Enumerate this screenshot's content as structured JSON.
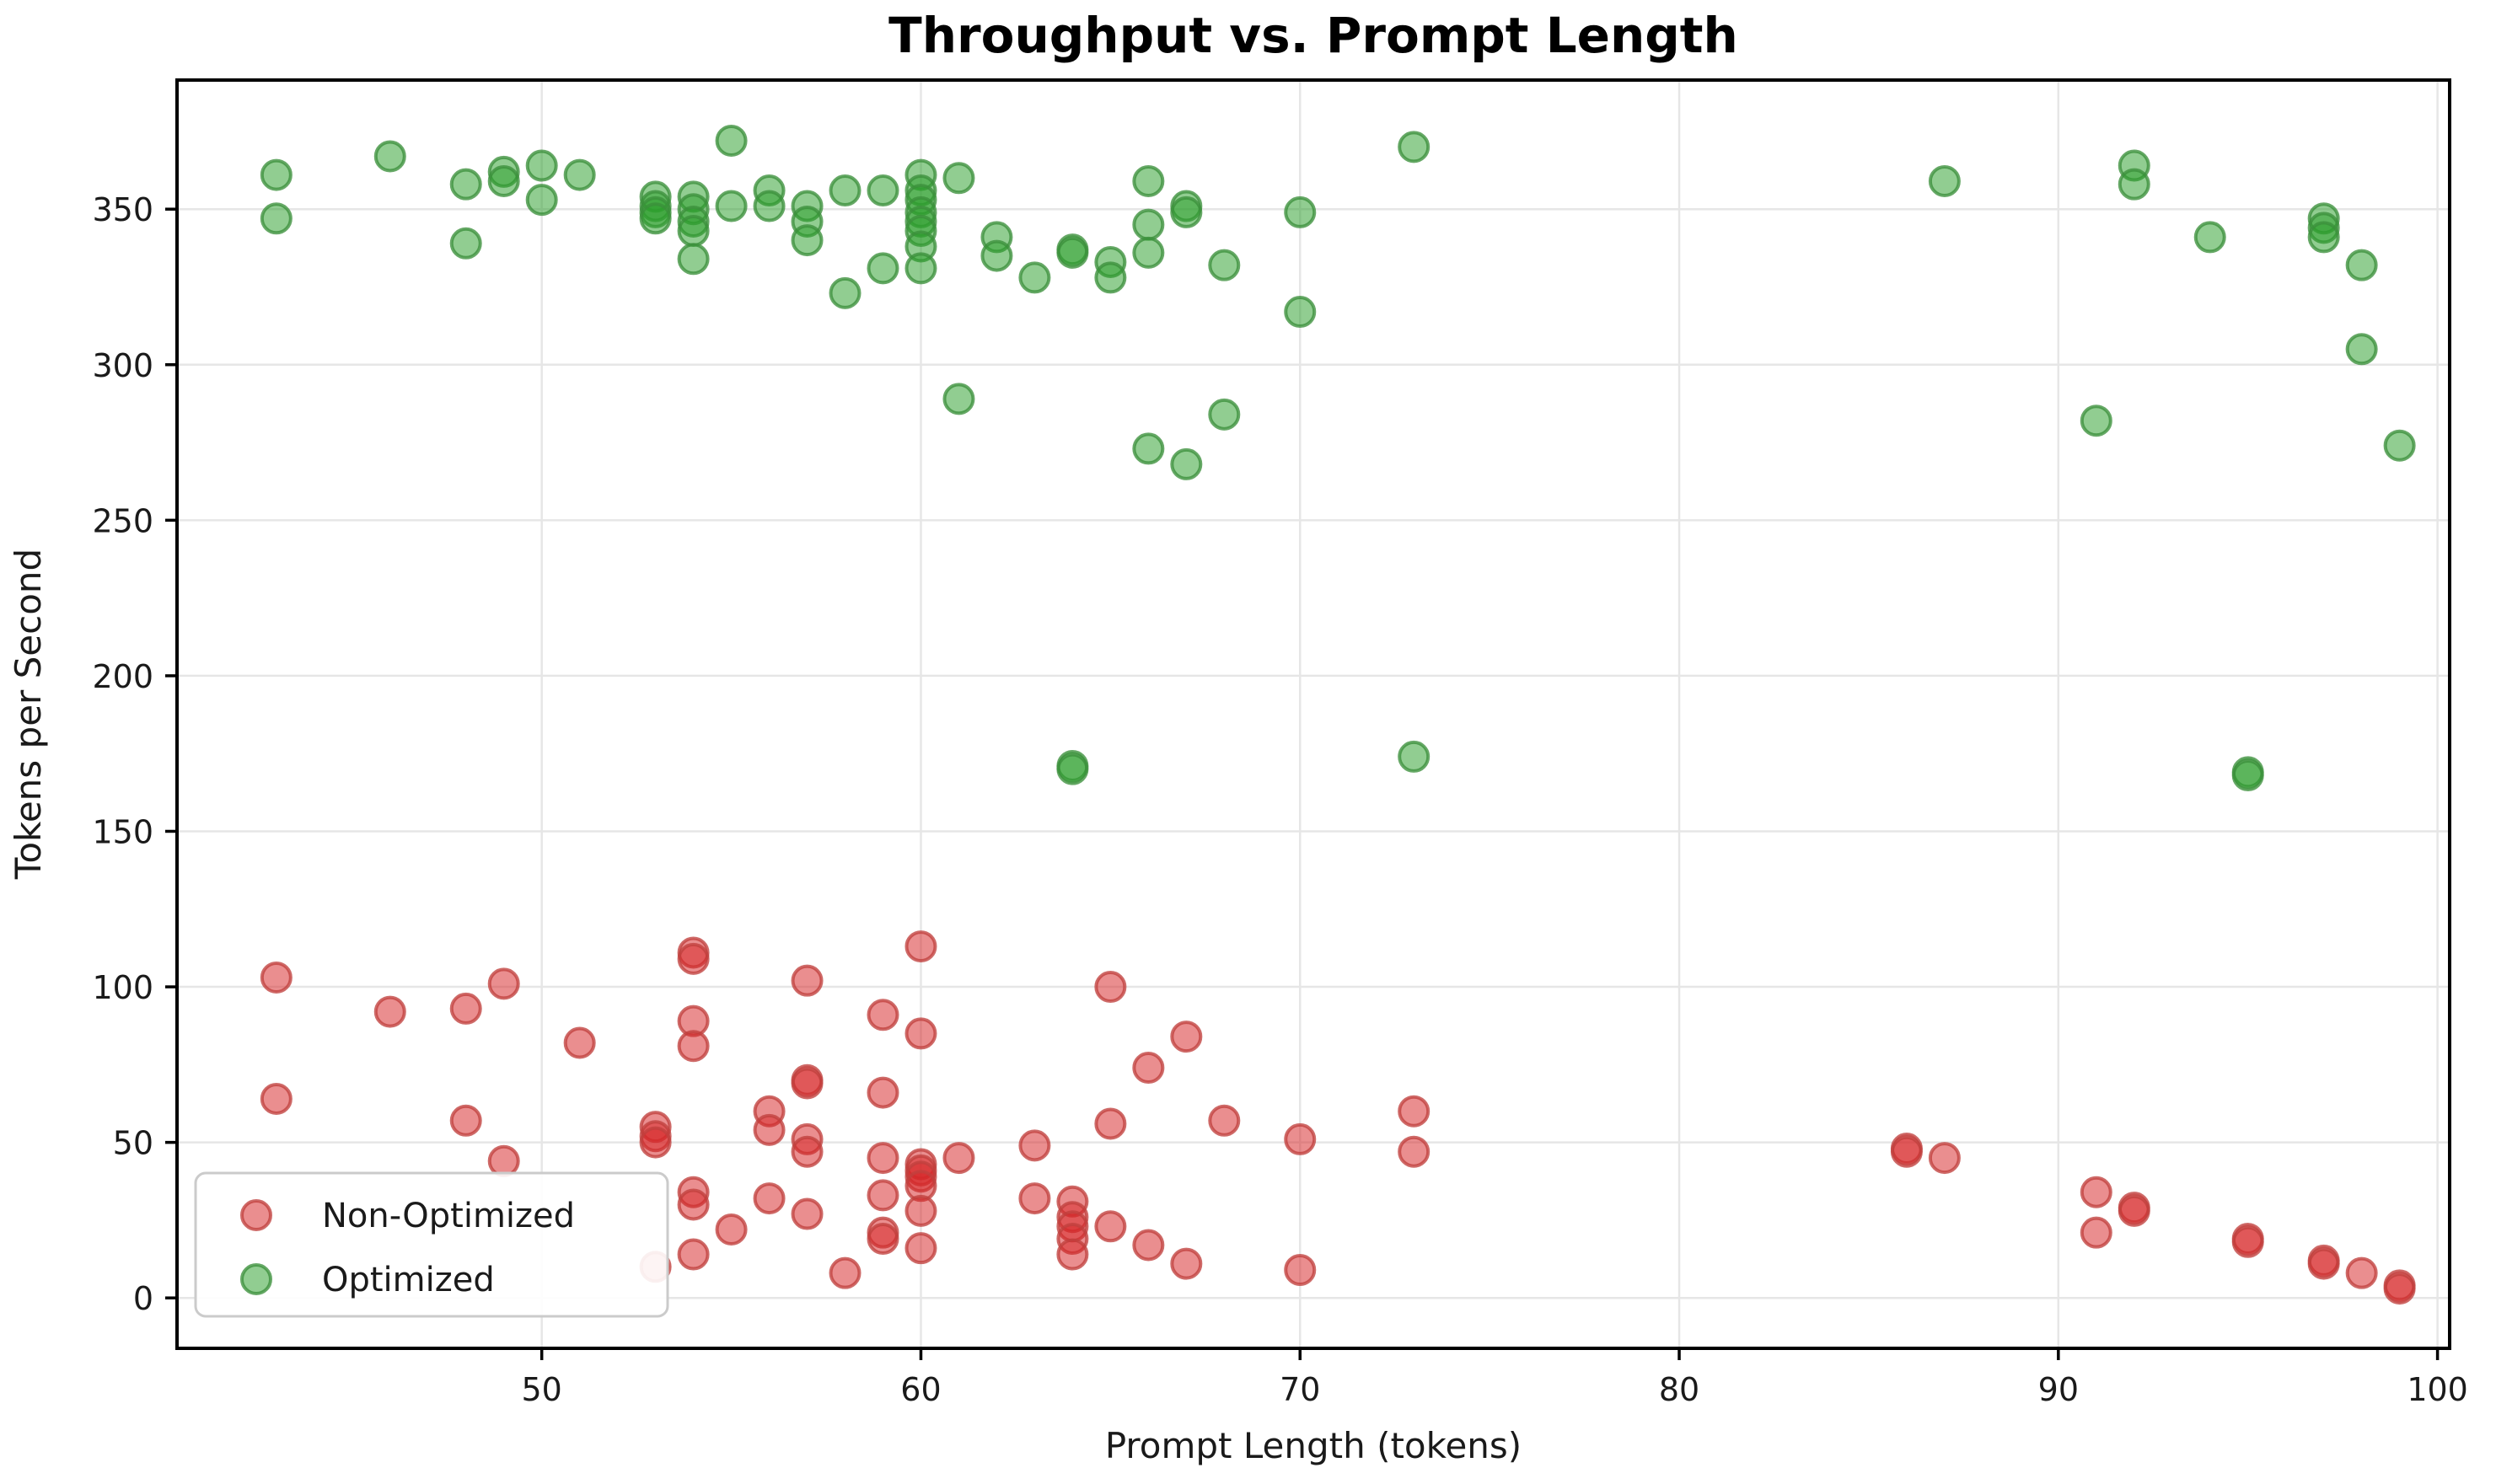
{
  "window": {
    "title": "Throughput vs. Prompt Length"
  },
  "chart_data": {
    "type": "scatter",
    "title": "Throughput vs. Prompt Length",
    "xlabel": "Prompt Length (tokens)",
    "ylabel": "Tokens per Second",
    "xlim": [
      40.38,
      100.32
    ],
    "ylim": [
      -16.2,
      391.5
    ],
    "xticks": [
      50,
      60,
      70,
      80,
      90,
      100
    ],
    "yticks": [
      0,
      50,
      100,
      150,
      200,
      250,
      300,
      350
    ],
    "grid": true,
    "grid_color": "#e6e6e6",
    "spine_color": "#000000",
    "legend_position": "lower left",
    "marker": {
      "radius": 17,
      "fill_opacity": 0.52,
      "stroke_opacity": 0.78,
      "stroke_width": 4
    },
    "series": [
      {
        "name": "Non-Optimized",
        "color": "#d62728",
        "edge_color": "#c0403d",
        "points": [
          [
            43,
            103
          ],
          [
            43,
            64
          ],
          [
            46,
            92
          ],
          [
            48,
            93
          ],
          [
            48,
            57
          ],
          [
            49,
            101
          ],
          [
            49,
            44
          ],
          [
            51,
            82
          ],
          [
            53,
            55
          ],
          [
            53,
            52
          ],
          [
            53,
            50
          ],
          [
            53,
            10
          ],
          [
            54,
            111
          ],
          [
            54,
            109
          ],
          [
            54,
            89
          ],
          [
            54,
            81
          ],
          [
            54,
            34
          ],
          [
            54,
            30
          ],
          [
            54,
            14
          ],
          [
            55,
            22
          ],
          [
            56,
            60
          ],
          [
            56,
            54
          ],
          [
            56,
            32
          ],
          [
            57,
            102
          ],
          [
            57,
            70
          ],
          [
            57,
            69
          ],
          [
            57,
            51
          ],
          [
            57,
            47
          ],
          [
            57,
            27
          ],
          [
            58,
            8
          ],
          [
            59,
            91
          ],
          [
            59,
            66
          ],
          [
            59,
            45
          ],
          [
            59,
            33
          ],
          [
            59,
            21
          ],
          [
            59,
            19
          ],
          [
            60,
            113
          ],
          [
            60,
            85
          ],
          [
            60,
            43
          ],
          [
            60,
            41
          ],
          [
            60,
            39
          ],
          [
            60,
            36
          ],
          [
            60,
            28
          ],
          [
            60,
            16
          ],
          [
            61,
            45
          ],
          [
            63,
            49
          ],
          [
            63,
            32
          ],
          [
            64,
            31
          ],
          [
            64,
            26
          ],
          [
            64,
            23
          ],
          [
            64,
            19
          ],
          [
            64,
            14
          ],
          [
            65,
            100
          ],
          [
            65,
            56
          ],
          [
            65,
            23
          ],
          [
            66,
            74
          ],
          [
            66,
            17
          ],
          [
            67,
            84
          ],
          [
            67,
            11
          ],
          [
            68,
            57
          ],
          [
            70,
            51
          ],
          [
            70,
            9
          ],
          [
            73,
            60
          ],
          [
            73,
            47
          ],
          [
            86,
            48
          ],
          [
            86,
            47
          ],
          [
            87,
            45
          ],
          [
            91,
            34
          ],
          [
            91,
            21
          ],
          [
            92,
            29
          ],
          [
            92,
            28
          ],
          [
            95,
            19
          ],
          [
            95,
            18
          ],
          [
            97,
            12
          ],
          [
            97,
            11
          ],
          [
            98,
            8
          ],
          [
            99,
            4
          ],
          [
            99,
            3
          ]
        ]
      },
      {
        "name": "Optimized",
        "color": "#2ca02c",
        "edge_color": "#3b8f3b",
        "points": [
          [
            43,
            361
          ],
          [
            43,
            347
          ],
          [
            46,
            367
          ],
          [
            48,
            358
          ],
          [
            48,
            339
          ],
          [
            49,
            362
          ],
          [
            49,
            359
          ],
          [
            50,
            364
          ],
          [
            50,
            353
          ],
          [
            51,
            361
          ],
          [
            53,
            354
          ],
          [
            53,
            351
          ],
          [
            53,
            349
          ],
          [
            53,
            347
          ],
          [
            54,
            354
          ],
          [
            54,
            350
          ],
          [
            54,
            346
          ],
          [
            54,
            343
          ],
          [
            54,
            334
          ],
          [
            55,
            372
          ],
          [
            55,
            351
          ],
          [
            56,
            356
          ],
          [
            56,
            351
          ],
          [
            57,
            351
          ],
          [
            57,
            346
          ],
          [
            57,
            340
          ],
          [
            58,
            356
          ],
          [
            58,
            323
          ],
          [
            59,
            356
          ],
          [
            59,
            331
          ],
          [
            60,
            361
          ],
          [
            60,
            356
          ],
          [
            60,
            353
          ],
          [
            60,
            349
          ],
          [
            60,
            346
          ],
          [
            60,
            343
          ],
          [
            60,
            338
          ],
          [
            60,
            331
          ],
          [
            61,
            360
          ],
          [
            61,
            289
          ],
          [
            62,
            341
          ],
          [
            62,
            335
          ],
          [
            63,
            328
          ],
          [
            64,
            337
          ],
          [
            64,
            336
          ],
          [
            64,
            171
          ],
          [
            64,
            170
          ],
          [
            65,
            333
          ],
          [
            65,
            328
          ],
          [
            66,
            359
          ],
          [
            66,
            345
          ],
          [
            66,
            336
          ],
          [
            66,
            273
          ],
          [
            67,
            351
          ],
          [
            67,
            349
          ],
          [
            67,
            268
          ],
          [
            68,
            332
          ],
          [
            68,
            284
          ],
          [
            70,
            349
          ],
          [
            70,
            317
          ],
          [
            73,
            370
          ],
          [
            73,
            174
          ],
          [
            87,
            359
          ],
          [
            91,
            282
          ],
          [
            92,
            364
          ],
          [
            92,
            358
          ],
          [
            94,
            341
          ],
          [
            95,
            169
          ],
          [
            95,
            168
          ],
          [
            97,
            347
          ],
          [
            97,
            344
          ],
          [
            97,
            341
          ],
          [
            98,
            332
          ],
          [
            98,
            305
          ],
          [
            99,
            274
          ]
        ]
      }
    ]
  }
}
